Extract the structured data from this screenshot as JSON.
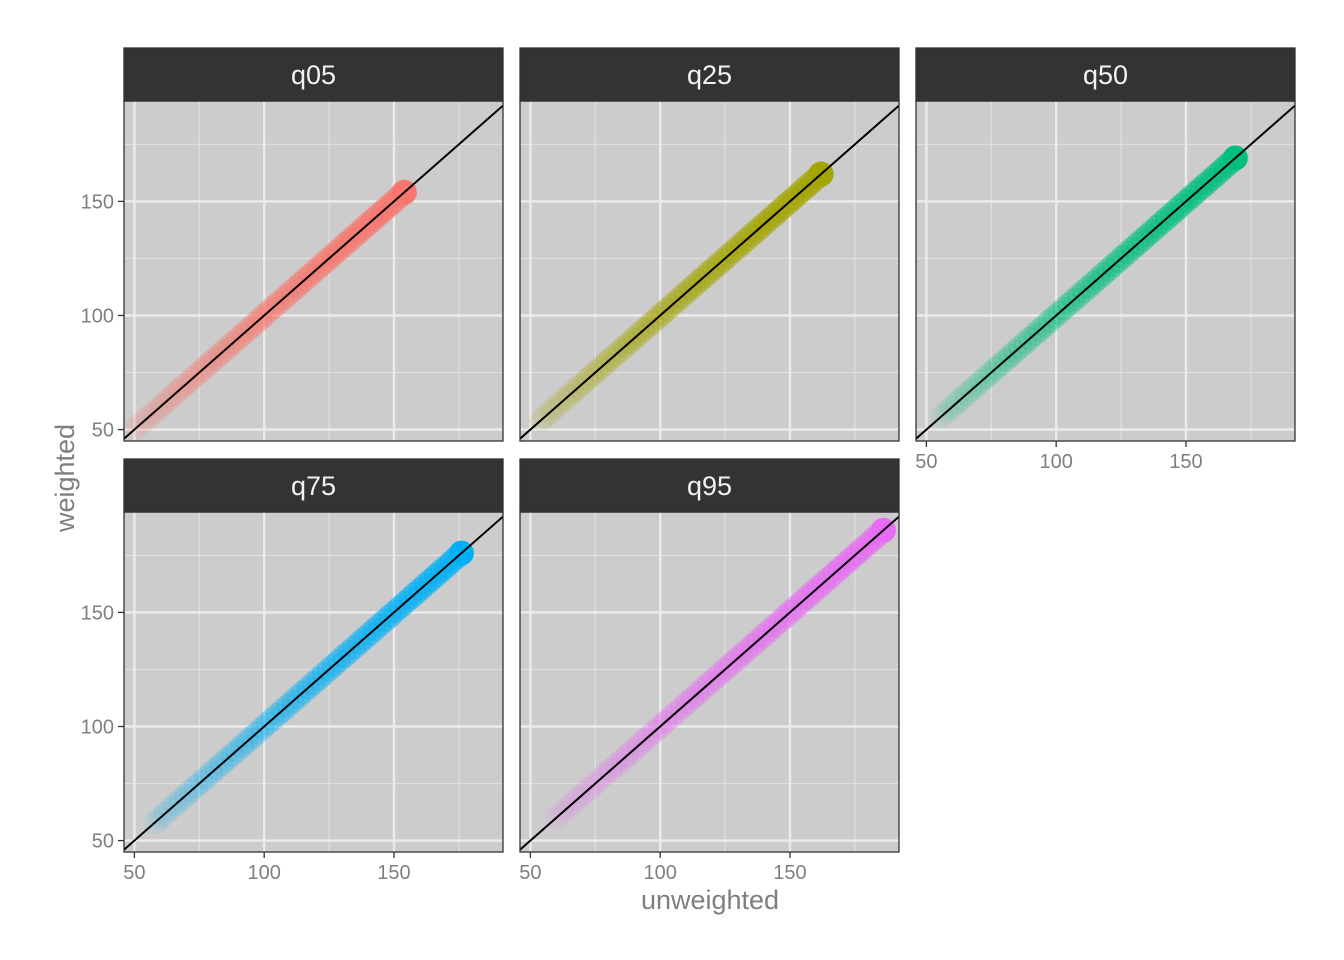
{
  "chart_data": {
    "type": "scatter",
    "layout": "facet-grid",
    "xlabel": "unweighted",
    "ylabel": "weighted",
    "xlim": [
      46,
      192
    ],
    "ylim": [
      45,
      194
    ],
    "x_ticks": [
      50,
      100,
      150
    ],
    "y_ticks": [
      50,
      100,
      150
    ],
    "x_minor": [
      75,
      125,
      175
    ],
    "y_minor": [
      75,
      125,
      175
    ],
    "reference_line": {
      "type": "identity",
      "color": "#000000"
    },
    "grid": true,
    "legend": "none",
    "panels": [
      {
        "label": "q05",
        "color": "#F8766D",
        "x_range": [
          50,
          154
        ]
      },
      {
        "label": "q25",
        "color": "#A3A500",
        "x_range": [
          54,
          162
        ]
      },
      {
        "label": "q50",
        "color": "#00BF7D",
        "x_range": [
          56,
          169
        ]
      },
      {
        "label": "q75",
        "color": "#00B0F6",
        "x_range": [
          58,
          176
        ]
      },
      {
        "label": "q95",
        "color": "#E76BF3",
        "x_range": [
          60,
          186
        ]
      }
    ]
  }
}
